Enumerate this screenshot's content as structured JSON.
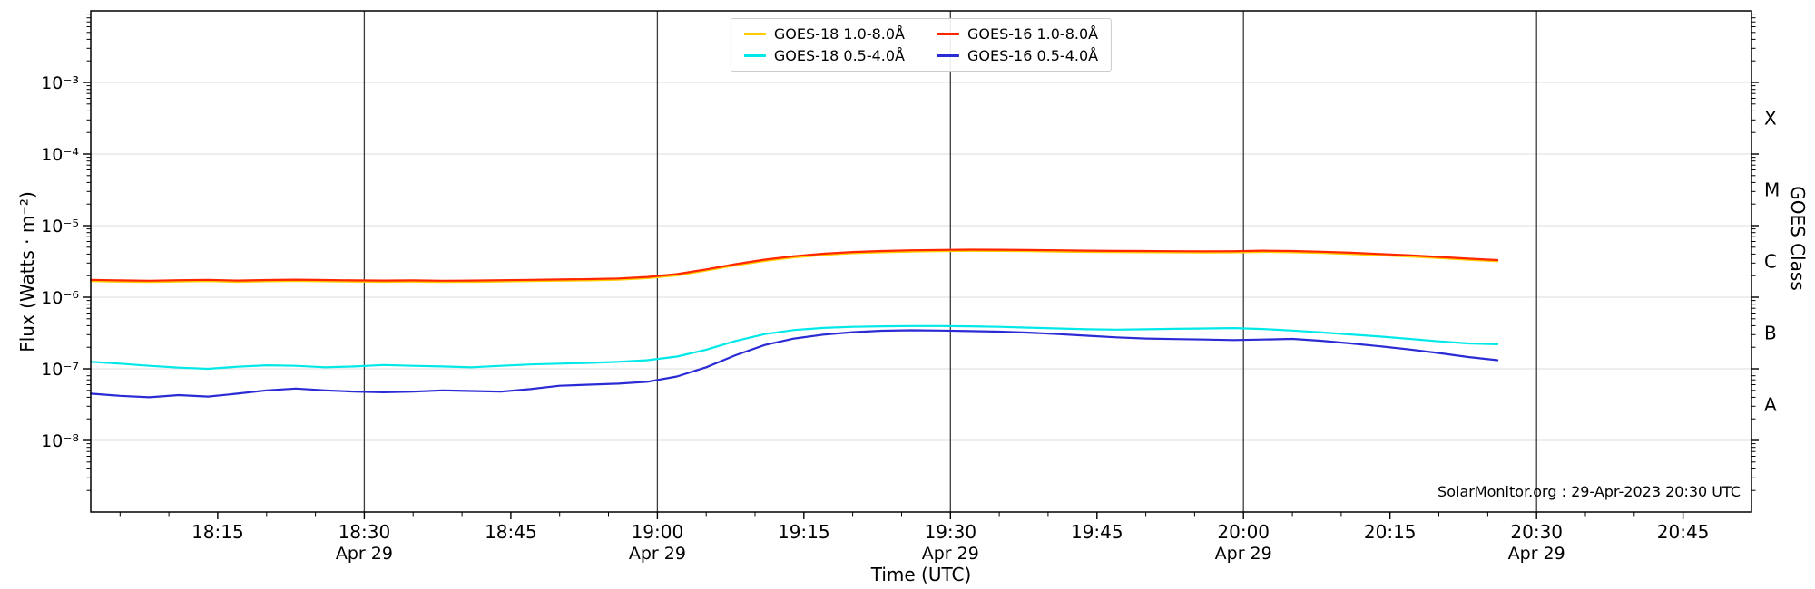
{
  "watermark": "SolarMonitor.org : 29-Apr-2023 20:30 UTC",
  "chart_data": {
    "type": "line",
    "title": "",
    "xlabel": "Time (UTC)",
    "ylabel": "Flux (Watts · m⁻²)",
    "ylabel_right": "GOES Class",
    "grid": true,
    "legend_position": "top-center",
    "x_unit": "minutes after 18:00 UTC",
    "x_domain": [
      2,
      172
    ],
    "y_log_domain": [
      -9,
      -2
    ],
    "x_minor_step": 5,
    "x_major_ticks": [
      {
        "m": 15,
        "label": "18:15"
      },
      {
        "m": 30,
        "label": "18:30"
      },
      {
        "m": 45,
        "label": "18:45"
      },
      {
        "m": 60,
        "label": "19:00"
      },
      {
        "m": 75,
        "label": "19:15"
      },
      {
        "m": 90,
        "label": "19:30"
      },
      {
        "m": 105,
        "label": "19:45"
      },
      {
        "m": 120,
        "label": "20:00"
      },
      {
        "m": 135,
        "label": "20:15"
      },
      {
        "m": 150,
        "label": "20:30"
      },
      {
        "m": 165,
        "label": "20:45"
      }
    ],
    "x_date_ticks": {
      "minutes": [
        30,
        60,
        90,
        120,
        150
      ],
      "label": "Apr 29"
    },
    "x_gridlines": [
      30,
      60,
      90,
      120,
      150
    ],
    "y_major_ticks": [
      {
        "v": 1e-08,
        "label": "10⁻⁸"
      },
      {
        "v": 1e-07,
        "label": "10⁻⁷"
      },
      {
        "v": 1e-06,
        "label": "10⁻⁶"
      },
      {
        "v": 1e-05,
        "label": "10⁻⁵"
      },
      {
        "v": 0.0001,
        "label": "10⁻⁴"
      },
      {
        "v": 0.001,
        "label": "10⁻³"
      }
    ],
    "goes_classes": [
      {
        "label": "A",
        "log_center": -7.5
      },
      {
        "label": "B",
        "log_center": -6.5
      },
      {
        "label": "C",
        "log_center": -5.5
      },
      {
        "label": "M",
        "log_center": -4.5
      },
      {
        "label": "X",
        "log_center": -3.5
      }
    ],
    "x": [
      2,
      5,
      8,
      11,
      14,
      17,
      20,
      23,
      26,
      29,
      32,
      35,
      38,
      41,
      44,
      47,
      50,
      53,
      56,
      59,
      62,
      65,
      68,
      71,
      74,
      77,
      80,
      83,
      86,
      89,
      92,
      95,
      98,
      101,
      104,
      107,
      110,
      113,
      116,
      119,
      122,
      125,
      128,
      131,
      134,
      137,
      140,
      143,
      146
    ],
    "series": [
      {
        "name": "GOES-18 1.0-8.0Å",
        "color": "#ffce00",
        "values": [
          1.68e-06,
          1.65e-06,
          1.63e-06,
          1.66e-06,
          1.68e-06,
          1.64e-06,
          1.67e-06,
          1.69e-06,
          1.67e-06,
          1.65e-06,
          1.64e-06,
          1.65e-06,
          1.63e-06,
          1.64e-06,
          1.66e-06,
          1.68e-06,
          1.7e-06,
          1.72e-06,
          1.76e-06,
          1.85e-06,
          2.02e-06,
          2.36e-06,
          2.79e-06,
          3.22e-06,
          3.61e-06,
          3.9e-06,
          4.12e-06,
          4.25e-06,
          4.35e-06,
          4.41e-06,
          4.45e-06,
          4.43e-06,
          4.39e-06,
          4.35e-06,
          4.3e-06,
          4.27e-06,
          4.25e-06,
          4.23e-06,
          4.21e-06,
          4.23e-06,
          4.3e-06,
          4.25e-06,
          4.16e-06,
          4.02e-06,
          3.87e-06,
          3.71e-06,
          3.52e-06,
          3.33e-06,
          3.18e-06
        ]
      },
      {
        "name": "GOES-18 0.5-4.0Å",
        "color": "#00e8e8",
        "values": [
          1.25e-07,
          1.18e-07,
          1.1e-07,
          1.04e-07,
          1e-07,
          1.07e-07,
          1.12e-07,
          1.1e-07,
          1.05e-07,
          1.08e-07,
          1.13e-07,
          1.1e-07,
          1.08e-07,
          1.05e-07,
          1.1e-07,
          1.15e-07,
          1.18e-07,
          1.21e-07,
          1.25e-07,
          1.32e-07,
          1.48e-07,
          1.85e-07,
          2.45e-07,
          3.05e-07,
          3.48e-07,
          3.72e-07,
          3.86e-07,
          3.92e-07,
          3.96e-07,
          3.96e-07,
          3.92e-07,
          3.86e-07,
          3.76e-07,
          3.66e-07,
          3.56e-07,
          3.52e-07,
          3.56e-07,
          3.62e-07,
          3.66e-07,
          3.7e-07,
          3.6e-07,
          3.42e-07,
          3.22e-07,
          3.02e-07,
          2.82e-07,
          2.62e-07,
          2.42e-07,
          2.26e-07,
          2.2e-07
        ]
      },
      {
        "name": "GOES-16 1.0-8.0Å",
        "color": "#ff2600",
        "values": [
          1.75e-06,
          1.72e-06,
          1.7e-06,
          1.73e-06,
          1.75e-06,
          1.71e-06,
          1.74e-06,
          1.76e-06,
          1.74e-06,
          1.72e-06,
          1.71e-06,
          1.72e-06,
          1.7e-06,
          1.71e-06,
          1.73e-06,
          1.75e-06,
          1.77e-06,
          1.79e-06,
          1.83e-06,
          1.92e-06,
          2.1e-06,
          2.45e-06,
          2.9e-06,
          3.35e-06,
          3.75e-06,
          4.05e-06,
          4.28e-06,
          4.42e-06,
          4.52e-06,
          4.58e-06,
          4.62e-06,
          4.6e-06,
          4.56e-06,
          4.52e-06,
          4.47e-06,
          4.44e-06,
          4.42e-06,
          4.4e-06,
          4.38e-06,
          4.4e-06,
          4.47e-06,
          4.42e-06,
          4.32e-06,
          4.18e-06,
          4.02e-06,
          3.86e-06,
          3.66e-06,
          3.46e-06,
          3.3e-06
        ]
      },
      {
        "name": "GOES-16 0.5-4.0Å",
        "color": "#2b2bd5",
        "values": [
          4.5e-08,
          4.2e-08,
          4e-08,
          4.3e-08,
          4.1e-08,
          4.5e-08,
          5e-08,
          5.3e-08,
          5e-08,
          4.8e-08,
          4.7e-08,
          4.8e-08,
          5e-08,
          4.9e-08,
          4.8e-08,
          5.2e-08,
          5.8e-08,
          6e-08,
          6.2e-08,
          6.6e-08,
          7.8e-08,
          1.05e-07,
          1.55e-07,
          2.15e-07,
          2.65e-07,
          3e-07,
          3.25e-07,
          3.4e-07,
          3.45e-07,
          3.42e-07,
          3.36e-07,
          3.3e-07,
          3.2e-07,
          3.05e-07,
          2.9e-07,
          2.75e-07,
          2.65e-07,
          2.6e-07,
          2.56e-07,
          2.52e-07,
          2.56e-07,
          2.62e-07,
          2.46e-07,
          2.26e-07,
          2.06e-07,
          1.86e-07,
          1.66e-07,
          1.46e-07,
          1.32e-07
        ]
      }
    ]
  }
}
